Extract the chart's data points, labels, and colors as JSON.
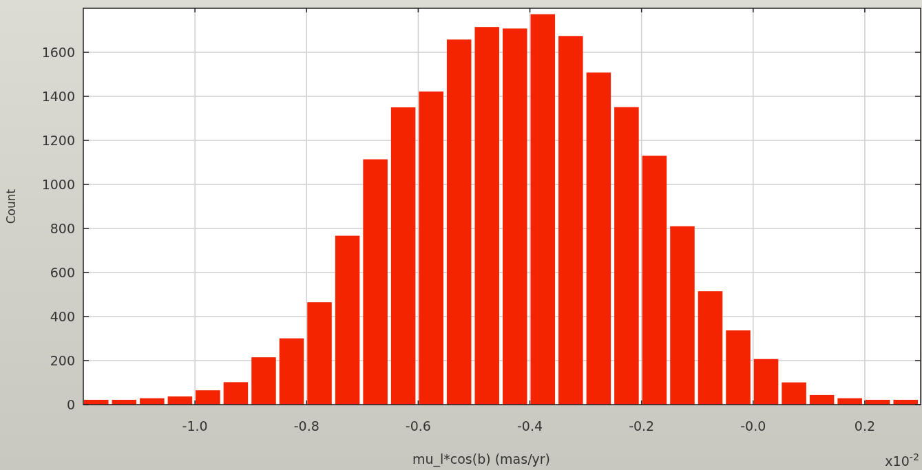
{
  "chart_data": {
    "type": "histogram",
    "xlabel": "mu_l*cos(b) (mas/yr)",
    "ylabel": "Count",
    "color": "#f42300",
    "bins": [
      -1.2,
      -1.15,
      -1.1,
      -1.05,
      -1.0,
      -0.95,
      -0.9,
      -0.85,
      -0.8,
      -0.75,
      -0.7,
      -0.65,
      -0.6,
      -0.55,
      -0.5,
      -0.45,
      -0.4,
      -0.35,
      -0.3,
      -0.25,
      -0.2,
      -0.15,
      -0.1,
      -0.05,
      0,
      0.05,
      0.1,
      0.15,
      0.2,
      0.25,
      0.3
    ],
    "values": [
      22,
      22,
      29,
      37,
      65,
      102,
      215,
      301,
      465,
      767,
      1114,
      1350,
      1422,
      1658,
      1715,
      1708,
      1773,
      1674,
      1508,
      1351,
      1130,
      810,
      515,
      337,
      207,
      101,
      44,
      29,
      22,
      22
    ],
    "xlim": [
      -1.2,
      0.3
    ],
    "xticks": [
      {
        "value": -1.0,
        "label": "-1.0"
      },
      {
        "value": -0.8,
        "label": "-0.8"
      },
      {
        "value": -0.6,
        "label": "-0.6"
      },
      {
        "value": -0.4,
        "label": "-0.4"
      },
      {
        "value": -0.2,
        "label": "-0.2"
      },
      {
        "value": 0,
        "label": "-0.0"
      },
      {
        "value": 0.2,
        "label": "0.2"
      }
    ],
    "ylim": [
      0,
      1800
    ],
    "yticks": [
      0,
      200,
      400,
      600,
      800,
      1000,
      1200,
      1400,
      1600
    ],
    "grid": true,
    "annotations": [
      "x10$^{-2}$"
    ]
  }
}
